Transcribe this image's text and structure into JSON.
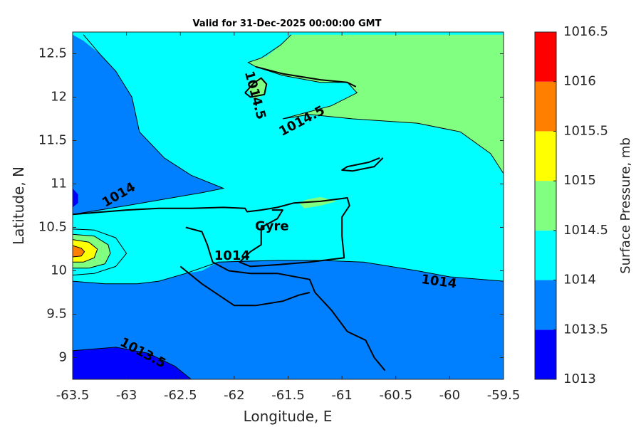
{
  "chart_data": {
    "type": "contour-map",
    "title": "Valid for 31-Dec-2025 00:00:00 GMT",
    "xlabel": "Longitude, E",
    "ylabel": "Latitude, N",
    "xlim": [
      -63.5,
      -59.5
    ],
    "ylim": [
      8.75,
      12.75
    ],
    "xticks": [
      -63.5,
      -63,
      -62.5,
      -62,
      -61.5,
      -61,
      -60.5,
      -60,
      -59.5
    ],
    "yticks": [
      9,
      9.5,
      10,
      10.5,
      11,
      11.5,
      12,
      12.5
    ],
    "colorbar": {
      "label": "Surface Pressure, mb",
      "levels": [
        1013,
        1013.5,
        1014,
        1014.5,
        1015,
        1015.5,
        1016,
        1016.5
      ],
      "colors": [
        "#0000ff",
        "#0080ff",
        "#00ffff",
        "#80ff80",
        "#ffff00",
        "#ff8000",
        "#ff0000",
        "#800000"
      ]
    },
    "contour_labels": [
      {
        "text": "1014.5",
        "lon": -61.81,
        "lat": 12.02,
        "angle": 75
      },
      {
        "text": "1014.5",
        "lon": -61.37,
        "lat": 11.72,
        "angle": -28
      },
      {
        "text": "1014",
        "lon": -63.07,
        "lat": 10.87,
        "angle": -30
      },
      {
        "text": "1014",
        "lon": -62.02,
        "lat": 10.17,
        "angle": 0
      },
      {
        "text": "1014",
        "lon": -60.1,
        "lat": 9.87,
        "angle": 8
      },
      {
        "text": "1013.5",
        "lon": -62.85,
        "lat": 9.05,
        "angle": 28
      }
    ],
    "place_labels": [
      {
        "text": "Gyre",
        "lon": -61.65,
        "lat": 10.51
      }
    ],
    "regions": [
      {
        "level": 1014,
        "color": "#00ffff",
        "points": [
          [
            -63.5,
            12.72
          ],
          [
            -59.5,
            12.72
          ],
          [
            -59.5,
            8.75
          ],
          [
            -63.5,
            8.75
          ]
        ]
      },
      {
        "level": 1014.5,
        "color": "#80ff80",
        "points": [
          [
            -61.3,
            12.72
          ],
          [
            -59.5,
            12.72
          ],
          [
            -59.5,
            11.12
          ],
          [
            -59.62,
            11.35
          ],
          [
            -59.9,
            11.6
          ],
          [
            -60.3,
            11.7
          ],
          [
            -60.9,
            11.75
          ],
          [
            -61.3,
            11.8
          ],
          [
            -61.55,
            11.75
          ],
          [
            -61.1,
            11.9
          ],
          [
            -60.86,
            12.05
          ],
          [
            -60.95,
            12.17
          ],
          [
            -61.2,
            12.17
          ],
          [
            -61.55,
            12.25
          ],
          [
            -61.8,
            12.35
          ],
          [
            -61.87,
            12.4
          ],
          [
            -61.75,
            12.45
          ],
          [
            -61.7,
            12.47
          ],
          [
            -61.57,
            12.6
          ],
          [
            -61.47,
            12.72
          ]
        ]
      },
      {
        "level": 1014.5,
        "color": "#80ff80",
        "points": [
          [
            -61.87,
            12.08
          ],
          [
            -61.84,
            12.18
          ],
          [
            -61.75,
            12.23
          ],
          [
            -61.7,
            12.17
          ],
          [
            -61.73,
            12.02
          ],
          [
            -61.82,
            11.98
          ]
        ]
      },
      {
        "level": 1014.5,
        "color": "#80ff80",
        "points": [
          [
            -61.35,
            10.72
          ],
          [
            -61.2,
            10.75
          ],
          [
            -61.05,
            10.8
          ],
          [
            -61.2,
            10.85
          ],
          [
            -61.33,
            10.82
          ],
          [
            -61.4,
            10.78
          ]
        ]
      },
      {
        "level": 1013.5,
        "color": "#0080ff",
        "points": [
          [
            -63.5,
            12.72
          ],
          [
            -63.4,
            12.65
          ],
          [
            -63.25,
            12.5
          ],
          [
            -63.1,
            12.3
          ],
          [
            -62.95,
            12.0
          ],
          [
            -62.88,
            11.6
          ],
          [
            -62.65,
            11.3
          ],
          [
            -62.4,
            11.1
          ],
          [
            -62.1,
            10.95
          ],
          [
            -62.3,
            10.9
          ],
          [
            -63.0,
            10.75
          ],
          [
            -63.3,
            10.68
          ],
          [
            -63.5,
            10.65
          ]
        ]
      },
      {
        "level": 1013.5,
        "color": "#0080ff",
        "points": [
          [
            -63.5,
            9.88
          ],
          [
            -63.2,
            9.85
          ],
          [
            -62.9,
            9.85
          ],
          [
            -62.7,
            9.88
          ],
          [
            -62.45,
            9.97
          ],
          [
            -62.3,
            10.0
          ],
          [
            -62.15,
            10.1
          ],
          [
            -61.9,
            10.12
          ],
          [
            -61.6,
            10.12
          ],
          [
            -61.2,
            10.12
          ],
          [
            -60.8,
            10.1
          ],
          [
            -60.3,
            10.0
          ],
          [
            -60.0,
            9.93
          ],
          [
            -59.5,
            9.88
          ],
          [
            -59.5,
            8.75
          ],
          [
            -63.5,
            8.75
          ]
        ]
      },
      {
        "level": 1013,
        "color": "#0000ff",
        "points": [
          [
            -63.5,
            9.08
          ],
          [
            -63.1,
            9.12
          ],
          [
            -62.8,
            9.05
          ],
          [
            -62.55,
            8.9
          ],
          [
            -62.4,
            8.75
          ],
          [
            -63.5,
            8.75
          ]
        ]
      },
      {
        "level": 1013,
        "color": "#0000ff",
        "points": [
          [
            -63.5,
            10.95
          ],
          [
            -63.45,
            10.88
          ],
          [
            -63.45,
            10.78
          ],
          [
            -63.5,
            10.73
          ]
        ]
      },
      {
        "level": 1014,
        "color": "#00ffff",
        "points": [
          [
            -63.5,
            10.48
          ],
          [
            -63.3,
            10.47
          ],
          [
            -63.1,
            10.38
          ],
          [
            -63.0,
            10.2
          ],
          [
            -63.1,
            10.05
          ],
          [
            -63.3,
            9.97
          ],
          [
            -63.5,
            9.95
          ]
        ]
      },
      {
        "level": 1014.5,
        "color": "#80ff80",
        "points": [
          [
            -63.5,
            10.42
          ],
          [
            -63.3,
            10.4
          ],
          [
            -63.17,
            10.3
          ],
          [
            -63.15,
            10.2
          ],
          [
            -63.2,
            10.08
          ],
          [
            -63.35,
            10.03
          ],
          [
            -63.5,
            10.03
          ]
        ]
      },
      {
        "level": 1015,
        "color": "#ffff00",
        "points": [
          [
            -63.5,
            10.36
          ],
          [
            -63.35,
            10.33
          ],
          [
            -63.27,
            10.25
          ],
          [
            -63.3,
            10.15
          ],
          [
            -63.4,
            10.1
          ],
          [
            -63.5,
            10.1
          ]
        ]
      },
      {
        "level": 1015.5,
        "color": "#ff8000",
        "points": [
          [
            -63.5,
            10.29
          ],
          [
            -63.42,
            10.26
          ],
          [
            -63.39,
            10.22
          ],
          [
            -63.42,
            10.17
          ],
          [
            -63.5,
            10.16
          ]
        ]
      }
    ],
    "coastlines": [
      [
        [
          -63.5,
          10.65
        ],
        [
          -63.3,
          10.67
        ],
        [
          -63.0,
          10.7
        ],
        [
          -62.7,
          10.72
        ],
        [
          -62.4,
          10.72
        ],
        [
          -62.1,
          10.73
        ],
        [
          -61.9,
          10.72
        ],
        [
          -61.88,
          10.68
        ],
        [
          -61.75,
          10.7
        ],
        [
          -61.6,
          10.73
        ],
        [
          -61.45,
          10.78
        ],
        [
          -61.2,
          10.8
        ],
        [
          -60.95,
          10.84
        ],
        [
          -60.93,
          10.75
        ],
        [
          -61.0,
          10.62
        ],
        [
          -61.0,
          10.4
        ],
        [
          -60.98,
          10.15
        ],
        [
          -61.3,
          10.1
        ],
        [
          -61.6,
          10.07
        ],
        [
          -61.85,
          10.05
        ],
        [
          -61.95,
          10.1
        ],
        [
          -61.85,
          10.22
        ],
        [
          -61.75,
          10.3
        ],
        [
          -61.75,
          10.5
        ],
        [
          -61.6,
          10.6
        ],
        [
          -61.55,
          10.7
        ],
        [
          -61.65,
          10.7
        ]
      ],
      [
        [
          -62.45,
          10.5
        ],
        [
          -62.3,
          10.45
        ],
        [
          -62.25,
          10.3
        ],
        [
          -62.2,
          10.1
        ],
        [
          -62.05,
          10.0
        ],
        [
          -61.85,
          9.97
        ],
        [
          -61.6,
          9.97
        ],
        [
          -61.3,
          9.9
        ],
        [
          -61.25,
          9.75
        ],
        [
          -61.1,
          9.55
        ],
        [
          -60.95,
          9.3
        ],
        [
          -60.78,
          9.2
        ],
        [
          -60.7,
          9.0
        ],
        [
          -60.6,
          8.85
        ]
      ],
      [
        [
          -62.5,
          10.05
        ],
        [
          -62.3,
          9.85
        ],
        [
          -62.0,
          9.6
        ],
        [
          -61.8,
          9.6
        ],
        [
          -61.55,
          9.65
        ],
        [
          -61.4,
          9.72
        ],
        [
          -61.3,
          9.75
        ]
      ],
      [
        [
          -60.87,
          12.12
        ],
        [
          -60.95,
          12.17
        ],
        [
          -61.2,
          12.2
        ],
        [
          -61.55,
          12.27
        ],
        [
          -61.8,
          12.35
        ]
      ],
      [
        [
          -61.9,
          12.05
        ],
        [
          -61.82,
          12.16
        ],
        [
          -61.75,
          12.22
        ],
        [
          -61.7,
          12.15
        ],
        [
          -61.72,
          12.03
        ],
        [
          -61.85,
          12.0
        ],
        [
          -61.9,
          12.05
        ]
      ],
      [
        [
          -60.65,
          11.3
        ],
        [
          -60.75,
          11.25
        ],
        [
          -60.95,
          11.2
        ],
        [
          -61.0,
          11.16
        ],
        [
          -60.9,
          11.15
        ],
        [
          -60.7,
          11.2
        ],
        [
          -60.62,
          11.3
        ]
      ]
    ],
    "contours": [
      [
        [
          -63.4,
          12.72
        ],
        [
          -63.25,
          12.5
        ],
        [
          -63.1,
          12.3
        ],
        [
          -62.95,
          12.0
        ],
        [
          -62.88,
          11.6
        ],
        [
          -62.65,
          11.3
        ],
        [
          -62.4,
          11.1
        ],
        [
          -62.1,
          10.95
        ],
        [
          -62.3,
          10.9
        ],
        [
          -63.0,
          10.75
        ],
        [
          -63.5,
          10.65
        ]
      ],
      [
        [
          -63.5,
          9.88
        ],
        [
          -63.2,
          9.85
        ],
        [
          -62.9,
          9.85
        ],
        [
          -62.7,
          9.88
        ],
        [
          -62.45,
          9.97
        ],
        [
          -62.15,
          10.1
        ],
        [
          -61.6,
          10.12
        ],
        [
          -61.2,
          10.12
        ],
        [
          -60.8,
          10.1
        ],
        [
          -60.3,
          10.0
        ],
        [
          -60.0,
          9.93
        ],
        [
          -59.5,
          9.88
        ]
      ],
      [
        [
          -63.5,
          9.08
        ],
        [
          -63.1,
          9.12
        ],
        [
          -62.8,
          9.05
        ],
        [
          -62.55,
          8.9
        ],
        [
          -62.4,
          8.75
        ]
      ],
      [
        [
          -61.47,
          12.72
        ],
        [
          -61.57,
          12.6
        ],
        [
          -61.75,
          12.45
        ],
        [
          -61.87,
          12.4
        ],
        [
          -61.8,
          12.35
        ],
        [
          -61.55,
          12.25
        ],
        [
          -61.2,
          12.17
        ],
        [
          -60.95,
          12.17
        ],
        [
          -60.86,
          12.05
        ],
        [
          -61.1,
          11.9
        ],
        [
          -61.55,
          11.75
        ],
        [
          -61.3,
          11.8
        ],
        [
          -60.9,
          11.75
        ],
        [
          -60.3,
          11.7
        ],
        [
          -59.9,
          11.6
        ],
        [
          -59.62,
          11.35
        ],
        [
          -59.5,
          11.12
        ]
      ],
      [
        [
          -63.5,
          10.48
        ],
        [
          -63.3,
          10.47
        ],
        [
          -63.1,
          10.38
        ],
        [
          -63.0,
          10.2
        ],
        [
          -63.1,
          10.05
        ],
        [
          -63.3,
          9.97
        ],
        [
          -63.5,
          9.95
        ]
      ],
      [
        [
          -63.5,
          10.42
        ],
        [
          -63.3,
          10.4
        ],
        [
          -63.17,
          10.3
        ],
        [
          -63.15,
          10.2
        ],
        [
          -63.2,
          10.08
        ],
        [
          -63.35,
          10.03
        ],
        [
          -63.5,
          10.03
        ]
      ],
      [
        [
          -63.5,
          10.36
        ],
        [
          -63.35,
          10.33
        ],
        [
          -63.27,
          10.25
        ],
        [
          -63.3,
          10.15
        ],
        [
          -63.4,
          10.1
        ],
        [
          -63.5,
          10.1
        ]
      ],
      [
        [
          -63.5,
          10.29
        ],
        [
          -63.42,
          10.26
        ],
        [
          -63.39,
          10.22
        ],
        [
          -63.42,
          10.17
        ],
        [
          -63.5,
          10.16
        ]
      ]
    ]
  }
}
